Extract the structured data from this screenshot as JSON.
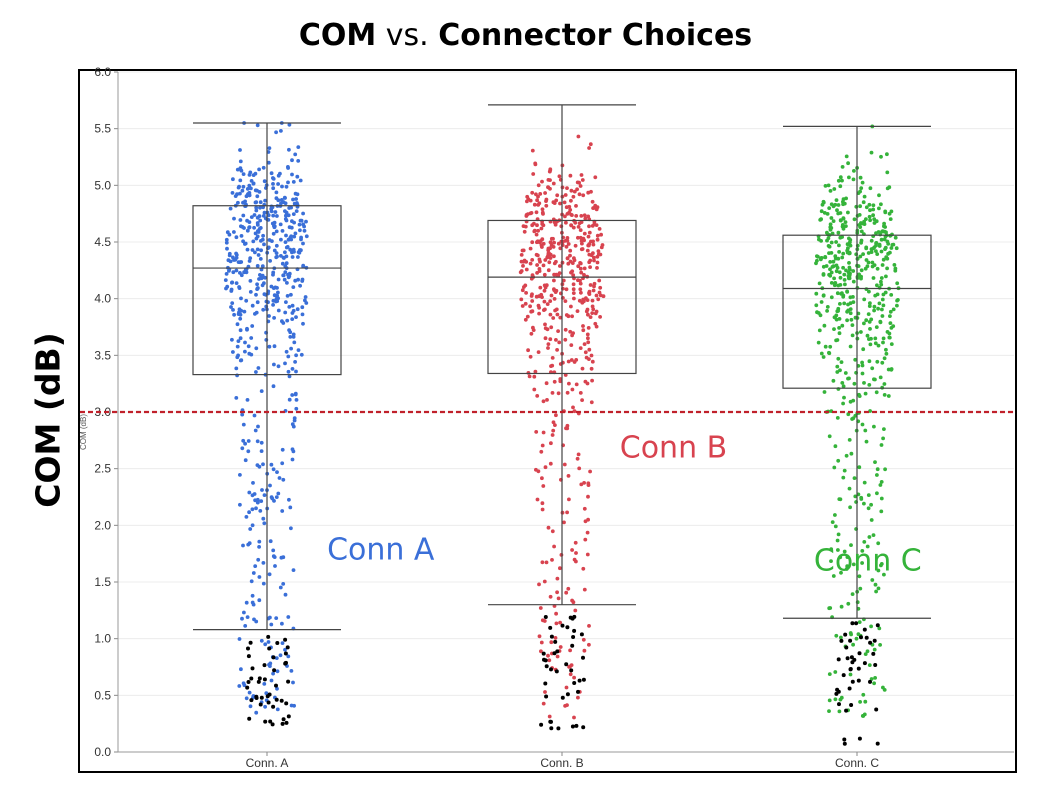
{
  "title": {
    "part1": "COM",
    "part2": "vs.",
    "part3": "Connector Choices"
  },
  "outer_ylabel": "COM (dB)",
  "chart_data": {
    "type": "box",
    "title": "COM vs. Connector Choices",
    "ylabel": "COM (dB)",
    "inner_ylabel": "COM (dB)",
    "ylim": [
      0,
      6
    ],
    "yticks": [
      "0.0",
      "0.5",
      "1.0",
      "1.5",
      "2.0",
      "2.5",
      "3.0",
      "3.5",
      "4.0",
      "4.5",
      "5.0",
      "5.5",
      "6.0"
    ],
    "categories": [
      "Conn. A",
      "Conn. B",
      "Conn. C"
    ],
    "series": [
      {
        "name": "Conn A",
        "tick_label": "Conn. A",
        "color": "#3a6fd8",
        "whisker_low": 1.08,
        "q1": 3.33,
        "median": 4.27,
        "q3": 4.82,
        "whisker_high": 5.55,
        "n_points": 560,
        "outliers_below": [
          0.98,
          0.9,
          0.82,
          0.75,
          0.65,
          0.6,
          0.5,
          0.45,
          0.4,
          0.3,
          0.28
        ]
      },
      {
        "name": "Conn B",
        "tick_label": "Conn. B",
        "color": "#d8434f",
        "whisker_low": 1.3,
        "q1": 3.34,
        "median": 4.19,
        "q3": 4.69,
        "whisker_high": 5.71,
        "n_points": 520,
        "outliers_below": [
          1.2,
          1.1,
          1.0,
          0.9,
          0.8,
          0.75,
          0.6,
          0.5,
          0.23,
          0.22
        ]
      },
      {
        "name": "Conn C",
        "tick_label": "Conn. C",
        "color": "#35b33a",
        "whisker_low": 1.18,
        "q1": 3.21,
        "median": 4.09,
        "q3": 4.56,
        "whisker_high": 5.52,
        "n_points": 540,
        "outliers_below": [
          1.1,
          1.0,
          0.95,
          0.85,
          0.8,
          0.75,
          0.65,
          0.55,
          0.4,
          0.11
        ]
      }
    ],
    "reference_line": {
      "value": 3.0,
      "color": "#c0202a",
      "style": "dashed"
    },
    "annotations": [
      {
        "text": "Conn A",
        "color": "#3a6fd8",
        "at": [
          1.2,
          1.7
        ]
      },
      {
        "text": "Conn B",
        "color": "#d8434f",
        "at": [
          2.18,
          2.6
        ]
      },
      {
        "text": "Conn C",
        "color": "#35b33a",
        "at": [
          2.83,
          1.6
        ]
      }
    ]
  }
}
